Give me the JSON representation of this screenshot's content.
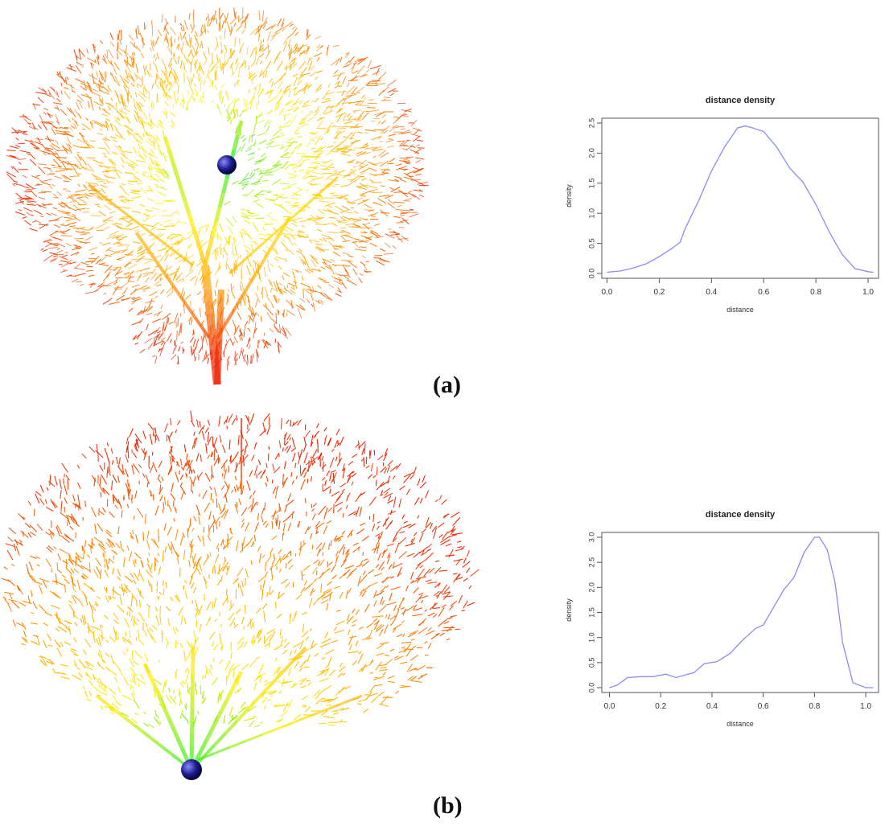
{
  "figure": {
    "panels": [
      {
        "label": "(a)",
        "tree": "tree-a",
        "chart_index": 0
      },
      {
        "label": "(b)",
        "tree": "tree-b",
        "chart_index": 1
      }
    ],
    "colors": {
      "background": "#ffffff",
      "density_line": "#8c8cf0",
      "axis": "#555555",
      "marker_sphere": "#1a1a8c",
      "gradient": [
        "#00ee22",
        "#ffee00",
        "#ff9900",
        "#ee2200"
      ]
    }
  },
  "chart_data": [
    {
      "type": "line",
      "title": "distance density",
      "xlabel": "distance",
      "ylabel": "density",
      "xlim": [
        -0.02,
        1.04
      ],
      "ylim": [
        0,
        2.5
      ],
      "xticks": [
        "0.0",
        "0.2",
        "0.4",
        "0.6",
        "0.8",
        "1.0"
      ],
      "yticks": [
        "0.0",
        "0.5",
        "1.0",
        "1.5",
        "2.0",
        "2.5"
      ],
      "grid": false,
      "x": [
        0.0,
        0.05,
        0.1,
        0.15,
        0.2,
        0.25,
        0.28,
        0.3,
        0.35,
        0.4,
        0.45,
        0.5,
        0.53,
        0.55,
        0.6,
        0.65,
        0.7,
        0.75,
        0.8,
        0.85,
        0.9,
        0.95,
        1.0,
        1.02
      ],
      "y": [
        0.02,
        0.04,
        0.09,
        0.16,
        0.28,
        0.42,
        0.52,
        0.75,
        1.2,
        1.7,
        2.1,
        2.42,
        2.45,
        2.43,
        2.36,
        2.1,
        1.75,
        1.52,
        1.15,
        0.7,
        0.32,
        0.08,
        0.03,
        0.02
      ]
    },
    {
      "type": "line",
      "title": "distance density",
      "xlabel": "distance",
      "ylabel": "density",
      "xlim": [
        -0.03,
        1.05
      ],
      "ylim": [
        0,
        3.0
      ],
      "xticks": [
        "0.0",
        "0.2",
        "0.4",
        "0.6",
        "0.8",
        "1.0"
      ],
      "yticks": [
        "0.0",
        "0.5",
        "1.0",
        "1.5",
        "2.0",
        "2.5",
        "3.0"
      ],
      "grid": false,
      "x": [
        0.0,
        0.03,
        0.07,
        0.12,
        0.17,
        0.22,
        0.26,
        0.3,
        0.33,
        0.37,
        0.42,
        0.47,
        0.52,
        0.57,
        0.6,
        0.64,
        0.68,
        0.72,
        0.76,
        0.8,
        0.82,
        0.85,
        0.88,
        0.91,
        0.95,
        1.0,
        1.03
      ],
      "y": [
        0.0,
        0.05,
        0.2,
        0.22,
        0.22,
        0.27,
        0.2,
        0.26,
        0.3,
        0.48,
        0.52,
        0.68,
        0.95,
        1.18,
        1.25,
        1.6,
        1.95,
        2.2,
        2.7,
        3.0,
        3.0,
        2.75,
        2.1,
        0.9,
        0.1,
        0.0,
        0.0
      ]
    }
  ]
}
